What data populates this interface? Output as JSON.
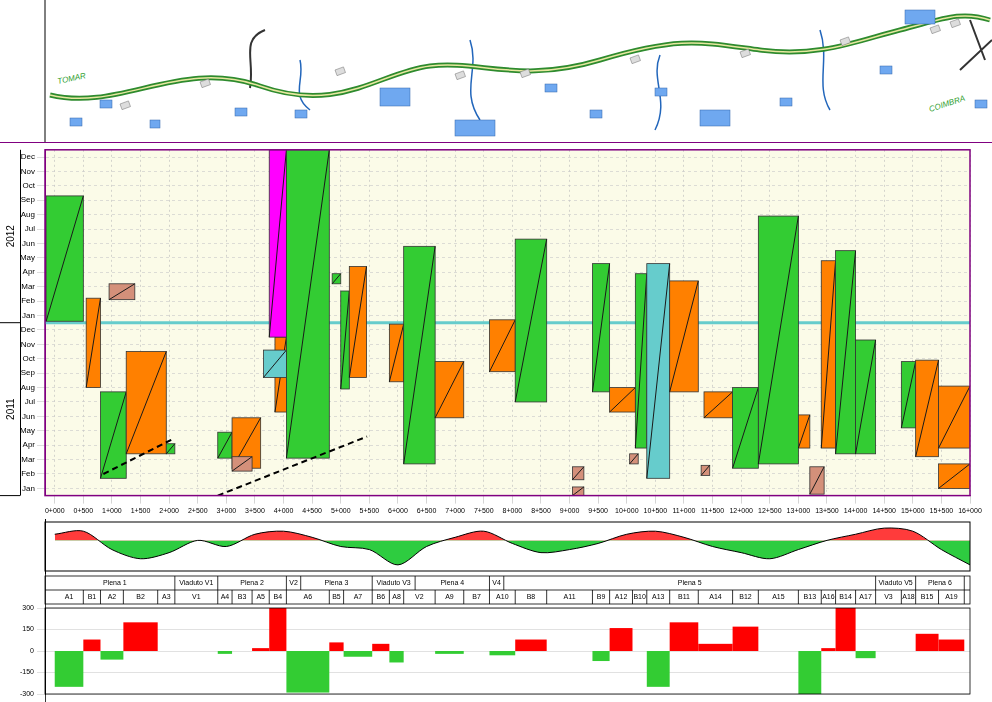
{
  "map": {
    "labels": [
      "TOMAR",
      "COIMBRA"
    ]
  },
  "chart_data": [
    {
      "type": "time_location",
      "xlim": [
        -170,
        16000
      ],
      "xticks": [
        {
          "value": 0,
          "label": "0+000"
        },
        {
          "value": 500,
          "label": "0+500"
        },
        {
          "value": 1000,
          "label": "1+000"
        },
        {
          "value": 1500,
          "label": "1+500"
        },
        {
          "value": 2000,
          "label": "2+000"
        },
        {
          "value": 2500,
          "label": "2+500"
        },
        {
          "value": 3000,
          "label": "3+000"
        },
        {
          "value": 3500,
          "label": "3+500"
        },
        {
          "value": 4000,
          "label": "4+000"
        },
        {
          "value": 4500,
          "label": "4+500"
        },
        {
          "value": 5000,
          "label": "5+000"
        },
        {
          "value": 5500,
          "label": "5+500"
        },
        {
          "value": 6000,
          "label": "6+000"
        },
        {
          "value": 6500,
          "label": "6+500"
        },
        {
          "value": 7000,
          "label": "7+000"
        },
        {
          "value": 7500,
          "label": "7+500"
        },
        {
          "value": 8000,
          "label": "8+000"
        },
        {
          "value": 8500,
          "label": "8+500"
        },
        {
          "value": 9000,
          "label": "9+000"
        },
        {
          "value": 9500,
          "label": "9+500"
        },
        {
          "value": 10000,
          "label": "10+000"
        },
        {
          "value": 10500,
          "label": "10+500"
        },
        {
          "value": 11000,
          "label": "11+000"
        },
        {
          "value": 11500,
          "label": "11+500"
        },
        {
          "value": 12000,
          "label": "12+000"
        },
        {
          "value": 12500,
          "label": "12+500"
        },
        {
          "value": 13000,
          "label": "13+000"
        },
        {
          "value": 13500,
          "label": "13+500"
        },
        {
          "value": 14000,
          "label": "14+000"
        },
        {
          "value": 14500,
          "label": "14+500"
        },
        {
          "value": 15000,
          "label": "15+000"
        },
        {
          "value": 15500,
          "label": "15+500"
        },
        {
          "value": 16000,
          "label": "16+000"
        }
      ],
      "ylim": [
        0,
        24
      ],
      "yticks": [
        {
          "value": 0.5,
          "label": "Jan"
        },
        {
          "value": 1.5,
          "label": "Feb"
        },
        {
          "value": 2.5,
          "label": "Mar"
        },
        {
          "value": 3.5,
          "label": "Apr"
        },
        {
          "value": 4.5,
          "label": "May"
        },
        {
          "value": 5.5,
          "label": "Jun"
        },
        {
          "value": 6.5,
          "label": "Jul"
        },
        {
          "value": 7.5,
          "label": "Aug"
        },
        {
          "value": 8.5,
          "label": "Sep"
        },
        {
          "value": 9.5,
          "label": "Oct"
        },
        {
          "value": 10.5,
          "label": "Nov"
        },
        {
          "value": 11.5,
          "label": "Dec"
        },
        {
          "value": 12.5,
          "label": "Jan"
        },
        {
          "value": 13.5,
          "label": "Feb"
        },
        {
          "value": 14.5,
          "label": "Mar"
        },
        {
          "value": 15.5,
          "label": "Apr"
        },
        {
          "value": 16.5,
          "label": "May"
        },
        {
          "value": 17.5,
          "label": "Jun"
        },
        {
          "value": 18.5,
          "label": "Jul"
        },
        {
          "value": 19.5,
          "label": "Aug"
        },
        {
          "value": 20.5,
          "label": "Sep"
        },
        {
          "value": 21.5,
          "label": "Oct"
        },
        {
          "value": 22.5,
          "label": "Nov"
        },
        {
          "value": 23.5,
          "label": "Dec"
        }
      ],
      "groups": [
        {
          "label": "2011",
          "from": 0,
          "to": 12
        },
        {
          "label": "2012",
          "from": 12,
          "to": 24
        }
      ],
      "grid": true,
      "activities": [
        {
          "x": [
            -150,
            500
          ],
          "y": [
            12.1,
            20.8
          ],
          "color": "#33cc33"
        },
        {
          "x": [
            550,
            800
          ],
          "y": [
            7.5,
            13.7
          ],
          "color": "#ff8000"
        },
        {
          "x": [
            950,
            1400
          ],
          "y": [
            13.6,
            14.7
          ],
          "color": "#d4907a"
        },
        {
          "x": [
            800,
            1250
          ],
          "y": [
            1.2,
            7.2
          ],
          "color": "#33cc33"
        },
        {
          "x": [
            1250,
            1950
          ],
          "y": [
            2.9,
            10
          ],
          "color": "#ff8000"
        },
        {
          "x": [
            1950,
            2100
          ],
          "y": [
            2.9,
            3.6
          ],
          "color": "#33cc33"
        },
        {
          "x": [
            2850,
            3100
          ],
          "y": [
            2.6,
            4.4
          ],
          "color": "#33cc33"
        },
        {
          "x": [
            3100,
            3600
          ],
          "y": [
            1.9,
            5.4
          ],
          "color": "#ff8000"
        },
        {
          "x": [
            3100,
            3450
          ],
          "y": [
            1.7,
            2.7
          ],
          "color": "#d4907a"
        },
        {
          "x": [
            3850,
            4050
          ],
          "y": [
            5.8,
            11
          ],
          "color": "#ff8000"
        },
        {
          "x": [
            3650,
            4050
          ],
          "y": [
            8.2,
            10.1
          ],
          "color": "#66cccc"
        },
        {
          "x": [
            3750,
            4050
          ],
          "y": [
            11,
            24
          ],
          "color": "#ff00ff"
        },
        {
          "x": [
            4050,
            4800
          ],
          "y": [
            2.6,
            24
          ],
          "color": "#33cc33"
        },
        {
          "x": [
            5000,
            5150
          ],
          "y": [
            7.4,
            14.2
          ],
          "color": "#33cc33"
        },
        {
          "x": [
            5150,
            5450
          ],
          "y": [
            8.2,
            15.9
          ],
          "color": "#ff8000"
        },
        {
          "x": [
            4850,
            5000
          ],
          "y": [
            14.7,
            15.4
          ],
          "color": "#33cc33"
        },
        {
          "x": [
            5850,
            6100
          ],
          "y": [
            7.9,
            11.9
          ],
          "color": "#ff8000"
        },
        {
          "x": [
            6100,
            6650
          ],
          "y": [
            2.2,
            17.3
          ],
          "color": "#33cc33"
        },
        {
          "x": [
            6650,
            7150
          ],
          "y": [
            5.4,
            9.3
          ],
          "color": "#ff8000"
        },
        {
          "x": [
            7600,
            8050
          ],
          "y": [
            8.6,
            12.2
          ],
          "color": "#ff8000"
        },
        {
          "x": [
            8050,
            8600
          ],
          "y": [
            6.5,
            17.8
          ],
          "color": "#33cc33"
        },
        {
          "x": [
            9050,
            9250
          ],
          "y": [
            1.1,
            2.0
          ],
          "color": "#d4907a"
        },
        {
          "x": [
            9050,
            9250
          ],
          "y": [
            0,
            0.6
          ],
          "color": "#d4907a"
        },
        {
          "x": [
            9400,
            9700
          ],
          "y": [
            7.2,
            16.1
          ],
          "color": "#33cc33"
        },
        {
          "x": [
            9700,
            10150
          ],
          "y": [
            5.8,
            7.5
          ],
          "color": "#ff8000"
        },
        {
          "x": [
            10050,
            10200
          ],
          "y": [
            2.2,
            2.9
          ],
          "color": "#d4907a"
        },
        {
          "x": [
            10150,
            10350
          ],
          "y": [
            3.3,
            15.4
          ],
          "color": "#33cc33"
        },
        {
          "x": [
            10350,
            10750
          ],
          "y": [
            1.2,
            16.1
          ],
          "color": "#66cccc"
        },
        {
          "x": [
            10750,
            11250
          ],
          "y": [
            7.2,
            14.9
          ],
          "color": "#ff8000"
        },
        {
          "x": [
            11300,
            11450
          ],
          "y": [
            1.4,
            2.1
          ],
          "color": "#d4907a"
        },
        {
          "x": [
            11350,
            11850
          ],
          "y": [
            5.4,
            7.2
          ],
          "color": "#ff8000"
        },
        {
          "x": [
            11850,
            12300
          ],
          "y": [
            1.9,
            7.5
          ],
          "color": "#33cc33"
        },
        {
          "x": [
            12300,
            13000
          ],
          "y": [
            2.2,
            19.4
          ],
          "color": "#33cc33"
        },
        {
          "x": [
            13000,
            13200
          ],
          "y": [
            3.3,
            5.6
          ],
          "color": "#ff8000"
        },
        {
          "x": [
            13200,
            13450
          ],
          "y": [
            0.1,
            2.0
          ],
          "color": "#d4907a"
        },
        {
          "x": [
            13400,
            13650
          ],
          "y": [
            3.3,
            16.3
          ],
          "color": "#ff8000"
        },
        {
          "x": [
            13650,
            14000
          ],
          "y": [
            2.9,
            17.0
          ],
          "color": "#33cc33"
        },
        {
          "x": [
            14000,
            14350
          ],
          "y": [
            2.9,
            10.8
          ],
          "color": "#33cc33"
        },
        {
          "x": [
            14800,
            15050
          ],
          "y": [
            4.7,
            9.3
          ],
          "color": "#33cc33"
        },
        {
          "x": [
            15050,
            15450
          ],
          "y": [
            2.7,
            9.4
          ],
          "color": "#ff8000"
        },
        {
          "x": [
            15450,
            16000
          ],
          "y": [
            3.3,
            7.6
          ],
          "color": "#ff8000"
        },
        {
          "x": [
            15450,
            16000
          ],
          "y": [
            0.5,
            2.2
          ],
          "color": "#ff8000"
        }
      ],
      "lines": [
        {
          "x": [
            2850,
            5460
          ],
          "y": [
            0,
            4.1
          ],
          "color": "#000000",
          "line_style": "dashed"
        },
        {
          "x": [
            850,
            2050
          ],
          "y": [
            1.5,
            3.9
          ],
          "color": "#000000",
          "line_style": "dashed"
        }
      ]
    },
    {
      "type": "line",
      "x": [
        0,
        500,
        1000,
        1500,
        2000,
        2500,
        3000,
        3500,
        4000,
        4500,
        5000,
        5500,
        6000,
        6500,
        7000,
        7500,
        8000,
        8500,
        9000,
        9500,
        10000,
        10500,
        11000,
        11500,
        12000,
        12500,
        13000,
        13500,
        14000,
        14500,
        15000,
        15500,
        16000
      ],
      "values": [
        2,
        3,
        -3,
        -6,
        -4,
        0,
        -2,
        2,
        3,
        1,
        -2,
        -3,
        -8,
        -2,
        1,
        3,
        -1,
        -4,
        -3,
        -1,
        2,
        3,
        1,
        -2,
        -4,
        -6,
        -3,
        0,
        2,
        4,
        3,
        -3,
        -8
      ],
      "color": "#000000",
      "xlim": [
        -170,
        16000
      ],
      "ylim": [
        -10,
        6
      ],
      "tick_labels": false,
      "grid": false
    },
    {
      "type": "bar",
      "bins": [
        0,
        500,
        800,
        1200,
        1800,
        2100,
        2850,
        3100,
        3450,
        3750,
        4050,
        4800,
        5050,
        5550,
        5850,
        6100,
        6650,
        7150,
        7600,
        8050,
        8600,
        9400,
        9700,
        10100,
        10350,
        10750,
        11250,
        11850,
        12300,
        13000,
        13400,
        13650,
        14000,
        14350,
        14800,
        15050,
        15450,
        15900
      ],
      "categories": [
        "A1",
        "B1",
        "A2",
        "B2",
        "A3",
        "V1",
        "A4",
        "B3",
        "A5",
        "B4",
        "A6",
        "B5",
        "A7",
        "B6",
        "A8",
        "V2",
        "A9",
        "B7",
        "A10",
        "B8",
        "A11",
        "B9",
        "A12",
        "B10",
        "A13",
        "B11",
        "A14",
        "B12",
        "A15",
        "B13",
        "A16",
        "B14",
        "A17",
        "V3",
        "A18",
        "B15",
        "A19"
      ],
      "values": [
        -250,
        80,
        -60,
        200,
        0,
        0,
        -20,
        0,
        20,
        300,
        -290,
        60,
        -40,
        50,
        -80,
        0,
        -20,
        0,
        -30,
        80,
        0,
        -70,
        160,
        0,
        -250,
        200,
        50,
        170,
        0,
        -300,
        20,
        300,
        -50,
        0,
        0,
        120,
        80
      ],
      "groups": [
        {
          "label": "Plena 1",
          "from": 0,
          "to": 2100
        },
        {
          "label": "Viaduto V1",
          "from": 2100,
          "to": 2850
        },
        {
          "label": "Plena 2",
          "from": 2850,
          "to": 4050
        },
        {
          "label": "V2",
          "from": 4050,
          "to": 4300
        },
        {
          "label": "Plena 3",
          "from": 4300,
          "to": 5550
        },
        {
          "label": "Viaduto V3",
          "from": 5550,
          "to": 6300
        },
        {
          "label": "Plena 4",
          "from": 6300,
          "to": 7600
        },
        {
          "label": "V4",
          "from": 7600,
          "to": 7850
        },
        {
          "label": "Plena 5",
          "from": 7850,
          "to": 14350
        },
        {
          "label": "Viaduto V5",
          "from": 14350,
          "to": 15050
        },
        {
          "label": "Plena 6",
          "from": 15050,
          "to": 15900
        }
      ],
      "xlim": [
        -170,
        16000
      ],
      "ylim": [
        -300,
        300
      ],
      "yticks": [
        -300,
        -150,
        0,
        150,
        300
      ],
      "tick_labels": "y",
      "grid": true
    }
  ]
}
